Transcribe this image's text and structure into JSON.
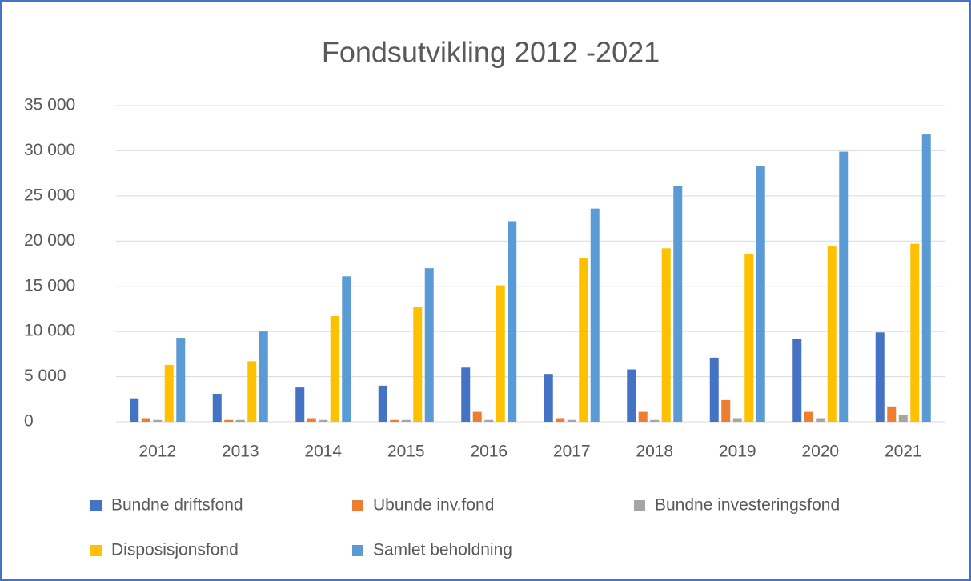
{
  "chart_data": {
    "type": "bar",
    "title": "Fondsutvikling 2012 -2021",
    "categories": [
      "2012",
      "2013",
      "2014",
      "2015",
      "2016",
      "2017",
      "2018",
      "2019",
      "2020",
      "2021"
    ],
    "series": [
      {
        "name": "Bundne driftsfond",
        "color": "#4472c4",
        "values": [
          2600,
          3100,
          3800,
          4000,
          6000,
          5300,
          5800,
          7100,
          9200,
          9900
        ]
      },
      {
        "name": "Ubunde inv.fond",
        "color": "#ed7d31",
        "values": [
          400,
          200,
          400,
          200,
          1100,
          400,
          1100,
          2400,
          1100,
          1700
        ]
      },
      {
        "name": "Bundne investeringsfond",
        "color": "#a5a5a5",
        "values": [
          200,
          200,
          200,
          200,
          200,
          200,
          200,
          400,
          400,
          800
        ]
      },
      {
        "name": "Disposisjonsfond",
        "color": "#ffc000",
        "values": [
          6300,
          6700,
          11700,
          12700,
          15100,
          18100,
          19200,
          18600,
          19400,
          19700
        ]
      },
      {
        "name": "Samlet beholdning",
        "color": "#5b9bd5",
        "values": [
          9300,
          10000,
          16100,
          17000,
          22200,
          23600,
          26100,
          28300,
          29900,
          31800
        ]
      }
    ],
    "ylim": [
      0,
      35000
    ],
    "yticks": [
      0,
      {
        "value": 5000,
        "label": "5 000"
      },
      {
        "value": 10000,
        "label": "10 000"
      },
      {
        "value": 15000,
        "label": "15 000"
      },
      {
        "value": 20000,
        "label": "20 000"
      },
      {
        "value": 25000,
        "label": "25 000"
      },
      {
        "value": 30000,
        "label": "30 000"
      },
      {
        "value": 35000,
        "label": "35 000"
      }
    ],
    "grid": true
  }
}
